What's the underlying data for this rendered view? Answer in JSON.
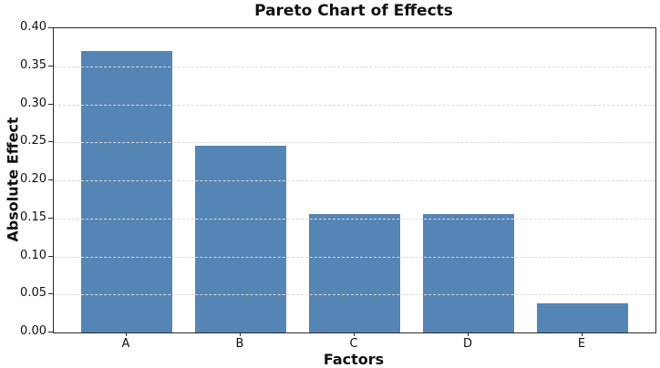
{
  "chart_data": {
    "type": "bar",
    "title": "Pareto Chart of Effects",
    "xlabel": "Factors",
    "ylabel": "Absolute Effect",
    "categories": [
      "A",
      "B",
      "C",
      "D",
      "E"
    ],
    "values": [
      0.37,
      0.245,
      0.156,
      0.156,
      0.038
    ],
    "ylim": [
      0.0,
      0.4
    ],
    "ytick_values": [
      0.0,
      0.05,
      0.1,
      0.15,
      0.2,
      0.25,
      0.3,
      0.35,
      0.4
    ],
    "ytick_labels": [
      "0.00",
      "0.05",
      "0.10",
      "0.15",
      "0.20",
      "0.25",
      "0.30",
      "0.35",
      "0.40"
    ],
    "grid": "horizontal-dashed-above-bars",
    "legend": null,
    "colors": {
      "bar": "#5585b4",
      "grid": "#d9d9d9",
      "axis": "#2a2a2a",
      "text": "#111111",
      "background": "#ffffff"
    }
  }
}
